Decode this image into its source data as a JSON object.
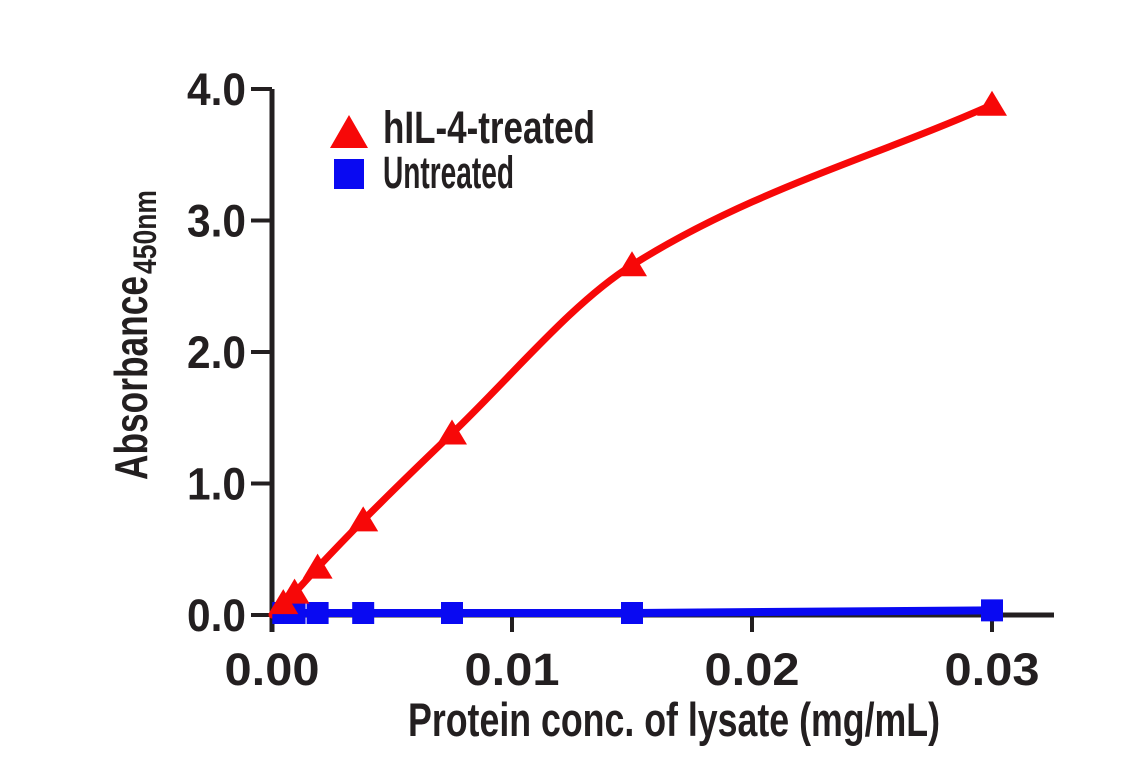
{
  "figure": {
    "background": "#ffffff",
    "ink_color": "#231F20"
  },
  "axes": {
    "x": {
      "title": "Protein conc. of lysate (mg/mL)",
      "tick_labels": [
        "0.00",
        "0.01",
        "0.02",
        "0.03"
      ],
      "tick_values": [
        0,
        0.01,
        0.02,
        0.03
      ],
      "range": [
        0,
        0.0326
      ]
    },
    "y": {
      "title": "Absorbance",
      "title_subscript": "450nm",
      "tick_labels": [
        "0.0",
        "1.0",
        "2.0",
        "3.0",
        "4.0"
      ],
      "tick_values": [
        0,
        1,
        2,
        3,
        4
      ],
      "range": [
        0,
        4
      ]
    }
  },
  "legend": {
    "items": [
      {
        "label": "hIL-4-treated",
        "marker": "triangle",
        "color": "#F70808"
      },
      {
        "label": "Untreated",
        "marker": "square",
        "color": "#0909F2"
      }
    ]
  },
  "chart_data": {
    "type": "line",
    "title": "",
    "xlabel": "Protein conc. of lysate (mg/mL)",
    "ylabel": "Absorbance 450nm",
    "xlim": [
      0,
      0.0326
    ],
    "ylim": [
      0,
      4
    ],
    "grid": false,
    "legend_position": "upper-left-inside",
    "x": [
      0.00047,
      0.00094,
      0.0019,
      0.0038,
      0.0075,
      0.015,
      0.03
    ],
    "series": [
      {
        "name": "hIL-4-treated",
        "color": "#F70808",
        "marker": "triangle",
        "curve": "smooth",
        "anchor_origin": true,
        "values": [
          0.09,
          0.17,
          0.36,
          0.72,
          1.38,
          2.66,
          3.88
        ]
      },
      {
        "name": "Untreated",
        "color": "#0909F2",
        "marker": "square",
        "curve": "straight",
        "anchor_origin": false,
        "values": [
          0.0,
          0.0,
          0.0,
          0.0,
          0.0,
          0.0,
          0.02
        ]
      }
    ]
  }
}
